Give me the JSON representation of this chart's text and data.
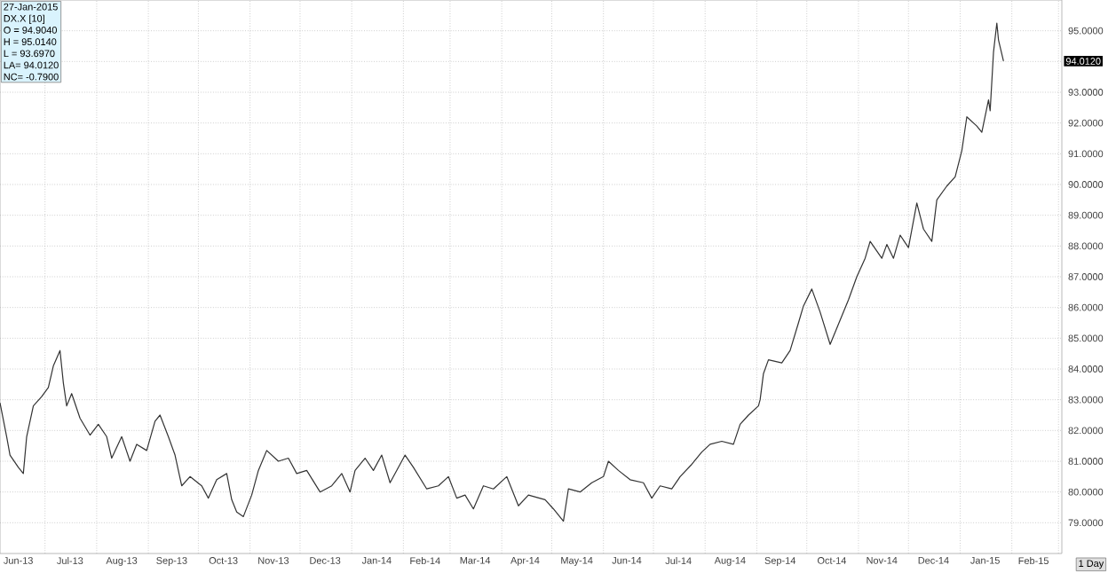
{
  "chart_data": {
    "type": "line",
    "annotations": [
      "27-Jan-2015",
      "DX.X [10]",
      "O = 94.9040",
      "H = 95.0140",
      "L = 93.6970",
      "LA= 94.0120",
      "NC= -0.7900",
      "94.0120",
      "1 Day"
    ],
    "xlim": [
      "2013-06-04",
      "2015-03-03"
    ],
    "xticks": [
      {
        "value": "2013-06-15",
        "label": "Jun-13"
      },
      {
        "value": "2013-07-01",
        "label": null
      },
      {
        "value": "2013-07-16",
        "label": "Jul-13"
      },
      {
        "value": "2013-08-01",
        "label": null
      },
      {
        "value": "2013-08-16",
        "label": "Aug-13"
      },
      {
        "value": "2013-09-01",
        "label": null
      },
      {
        "value": "2013-09-15",
        "label": "Sep-13"
      },
      {
        "value": "2013-10-01",
        "label": null
      },
      {
        "value": "2013-10-16",
        "label": "Oct-13"
      },
      {
        "value": "2013-11-01",
        "label": null
      },
      {
        "value": "2013-11-15",
        "label": "Nov-13"
      },
      {
        "value": "2013-12-01",
        "label": null
      },
      {
        "value": "2013-12-16",
        "label": "Dec-13"
      },
      {
        "value": "2014-01-01",
        "label": null
      },
      {
        "value": "2014-01-16",
        "label": "Jan-14"
      },
      {
        "value": "2014-02-01",
        "label": null
      },
      {
        "value": "2014-02-14",
        "label": "Feb-14"
      },
      {
        "value": "2014-03-01",
        "label": null
      },
      {
        "value": "2014-03-16",
        "label": "Mar-14"
      },
      {
        "value": "2014-04-01",
        "label": null
      },
      {
        "value": "2014-04-15",
        "label": "Apr-14"
      },
      {
        "value": "2014-05-01",
        "label": null
      },
      {
        "value": "2014-05-16",
        "label": "May-14"
      },
      {
        "value": "2014-06-01",
        "label": null
      },
      {
        "value": "2014-06-15",
        "label": "Jun-14"
      },
      {
        "value": "2014-07-01",
        "label": null
      },
      {
        "value": "2014-07-16",
        "label": "Jul-14"
      },
      {
        "value": "2014-08-01",
        "label": null
      },
      {
        "value": "2014-08-16",
        "label": "Aug-14"
      },
      {
        "value": "2014-09-01",
        "label": null
      },
      {
        "value": "2014-09-15",
        "label": "Sep-14"
      },
      {
        "value": "2014-10-01",
        "label": null
      },
      {
        "value": "2014-10-16",
        "label": "Oct-14"
      },
      {
        "value": "2014-11-01",
        "label": null
      },
      {
        "value": "2014-11-15",
        "label": "Nov-14"
      },
      {
        "value": "2014-12-01",
        "label": null
      },
      {
        "value": "2014-12-16",
        "label": "Dec-14"
      },
      {
        "value": "2015-01-01",
        "label": null
      },
      {
        "value": "2015-01-16",
        "label": "Jan-15"
      },
      {
        "value": "2015-02-01",
        "label": null
      },
      {
        "value": "2015-02-14",
        "label": "Feb-15"
      },
      {
        "value": "2015-03-01",
        "label": null
      }
    ],
    "ylim": [
      78,
      96
    ],
    "yticks": [
      {
        "value": 79,
        "label": "79.0000"
      },
      {
        "value": 80,
        "label": "80.0000"
      },
      {
        "value": 81,
        "label": "81.0000"
      },
      {
        "value": 82,
        "label": "82.0000"
      },
      {
        "value": 83,
        "label": "83.0000"
      },
      {
        "value": 84,
        "label": "84.0000"
      },
      {
        "value": 85,
        "label": "85.0000"
      },
      {
        "value": 86,
        "label": "86.0000"
      },
      {
        "value": 87,
        "label": "87.0000"
      },
      {
        "value": 88,
        "label": "88.0000"
      },
      {
        "value": 89,
        "label": "89.0000"
      },
      {
        "value": 90,
        "label": "90.0000"
      },
      {
        "value": 91,
        "label": "91.0000"
      },
      {
        "value": 92,
        "label": "92.0000"
      },
      {
        "value": 93,
        "label": "93.0000"
      },
      {
        "value": 94,
        "label": null
      },
      {
        "value": 95,
        "label": "95.0000"
      }
    ],
    "grid": true,
    "x": [
      "2013-06-04",
      "2013-06-08",
      "2013-06-10",
      "2013-06-15",
      "2013-06-18",
      "2013-06-20",
      "2013-06-24",
      "2013-06-29",
      "2013-07-03",
      "2013-07-06",
      "2013-07-10",
      "2013-07-12",
      "2013-07-14",
      "2013-07-17",
      "2013-07-22",
      "2013-07-28",
      "2013-08-02",
      "2013-08-07",
      "2013-08-10",
      "2013-08-16",
      "2013-08-21",
      "2013-08-25",
      "2013-08-31",
      "2013-09-05",
      "2013-09-08",
      "2013-09-13",
      "2013-09-17",
      "2013-09-21",
      "2013-09-26",
      "2013-10-03",
      "2013-10-07",
      "2013-10-12",
      "2013-10-18",
      "2013-10-21",
      "2013-10-24",
      "2013-10-28",
      "2013-11-02",
      "2013-11-06",
      "2013-11-11",
      "2013-11-18",
      "2013-11-24",
      "2013-11-29",
      "2013-12-05",
      "2013-12-13",
      "2013-12-20",
      "2013-12-26",
      "2013-12-31",
      "2014-01-03",
      "2014-01-09",
      "2014-01-14",
      "2014-01-19",
      "2014-01-24",
      "2014-02-02",
      "2014-02-07",
      "2014-02-15",
      "2014-02-22",
      "2014-02-28",
      "2014-03-05",
      "2014-03-10",
      "2014-03-15",
      "2014-03-21",
      "2014-03-27",
      "2014-04-04",
      "2014-04-11",
      "2014-04-17",
      "2014-04-27",
      "2014-05-02",
      "2014-05-08",
      "2014-05-11",
      "2014-05-18",
      "2014-05-25",
      "2014-06-01",
      "2014-06-04",
      "2014-06-10",
      "2014-06-17",
      "2014-06-25",
      "2014-06-30",
      "2014-07-05",
      "2014-07-12",
      "2014-07-17",
      "2014-07-24",
      "2014-07-30",
      "2014-08-04",
      "2014-08-11",
      "2014-08-18",
      "2014-08-22",
      "2014-08-27",
      "2014-09-02",
      "2014-09-03",
      "2014-09-05",
      "2014-09-08",
      "2014-09-16",
      "2014-09-21",
      "2014-09-26",
      "2014-09-29",
      "2014-10-04",
      "2014-10-09",
      "2014-10-15",
      "2014-10-26",
      "2014-10-31",
      "2014-11-05",
      "2014-11-08",
      "2014-11-15",
      "2014-11-18",
      "2014-11-22",
      "2014-11-26",
      "2014-12-01",
      "2014-12-06",
      "2014-12-10",
      "2014-12-15",
      "2014-12-18",
      "2014-12-24",
      "2014-12-29",
      "2015-01-02",
      "2015-01-05",
      "2015-01-11",
      "2015-01-14",
      "2015-01-18",
      "2015-01-19",
      "2015-01-21",
      "2015-01-23",
      "2015-01-24",
      "2015-01-27"
    ],
    "series": [
      {
        "color": "#333333",
        "values": [
          82.9,
          81.8,
          81.2,
          80.8,
          80.6,
          81.8,
          82.8,
          83.1,
          83.4,
          84.1,
          84.6,
          83.55,
          82.8,
          83.2,
          82.4,
          81.85,
          82.2,
          81.8,
          81.1,
          81.8,
          81.0,
          81.55,
          81.35,
          82.3,
          82.5,
          81.8,
          81.2,
          80.2,
          80.5,
          80.2,
          79.8,
          80.4,
          80.6,
          79.75,
          79.35,
          79.2,
          79.9,
          80.7,
          81.35,
          81.0,
          81.1,
          80.6,
          80.7,
          80.0,
          80.2,
          80.6,
          80.0,
          80.7,
          81.1,
          80.7,
          81.2,
          80.3,
          81.2,
          80.8,
          80.1,
          80.2,
          80.5,
          79.8,
          79.9,
          79.45,
          80.2,
          80.1,
          80.5,
          79.55,
          79.9,
          79.75,
          79.45,
          79.05,
          80.1,
          80.0,
          80.3,
          80.5,
          81.0,
          80.7,
          80.4,
          80.3,
          79.8,
          80.2,
          80.1,
          80.5,
          80.9,
          81.3,
          81.55,
          81.65,
          81.55,
          82.2,
          82.5,
          82.8,
          83.0,
          83.85,
          84.3,
          84.2,
          84.6,
          85.5,
          86.05,
          86.6,
          85.85,
          84.8,
          86.25,
          87.0,
          87.6,
          88.15,
          87.6,
          88.05,
          87.6,
          88.35,
          87.95,
          89.4,
          88.55,
          88.15,
          89.5,
          89.95,
          90.25,
          91.1,
          92.2,
          91.9,
          91.7,
          92.75,
          92.4,
          94.3,
          95.25,
          94.7,
          94.01
        ]
      }
    ]
  }
}
